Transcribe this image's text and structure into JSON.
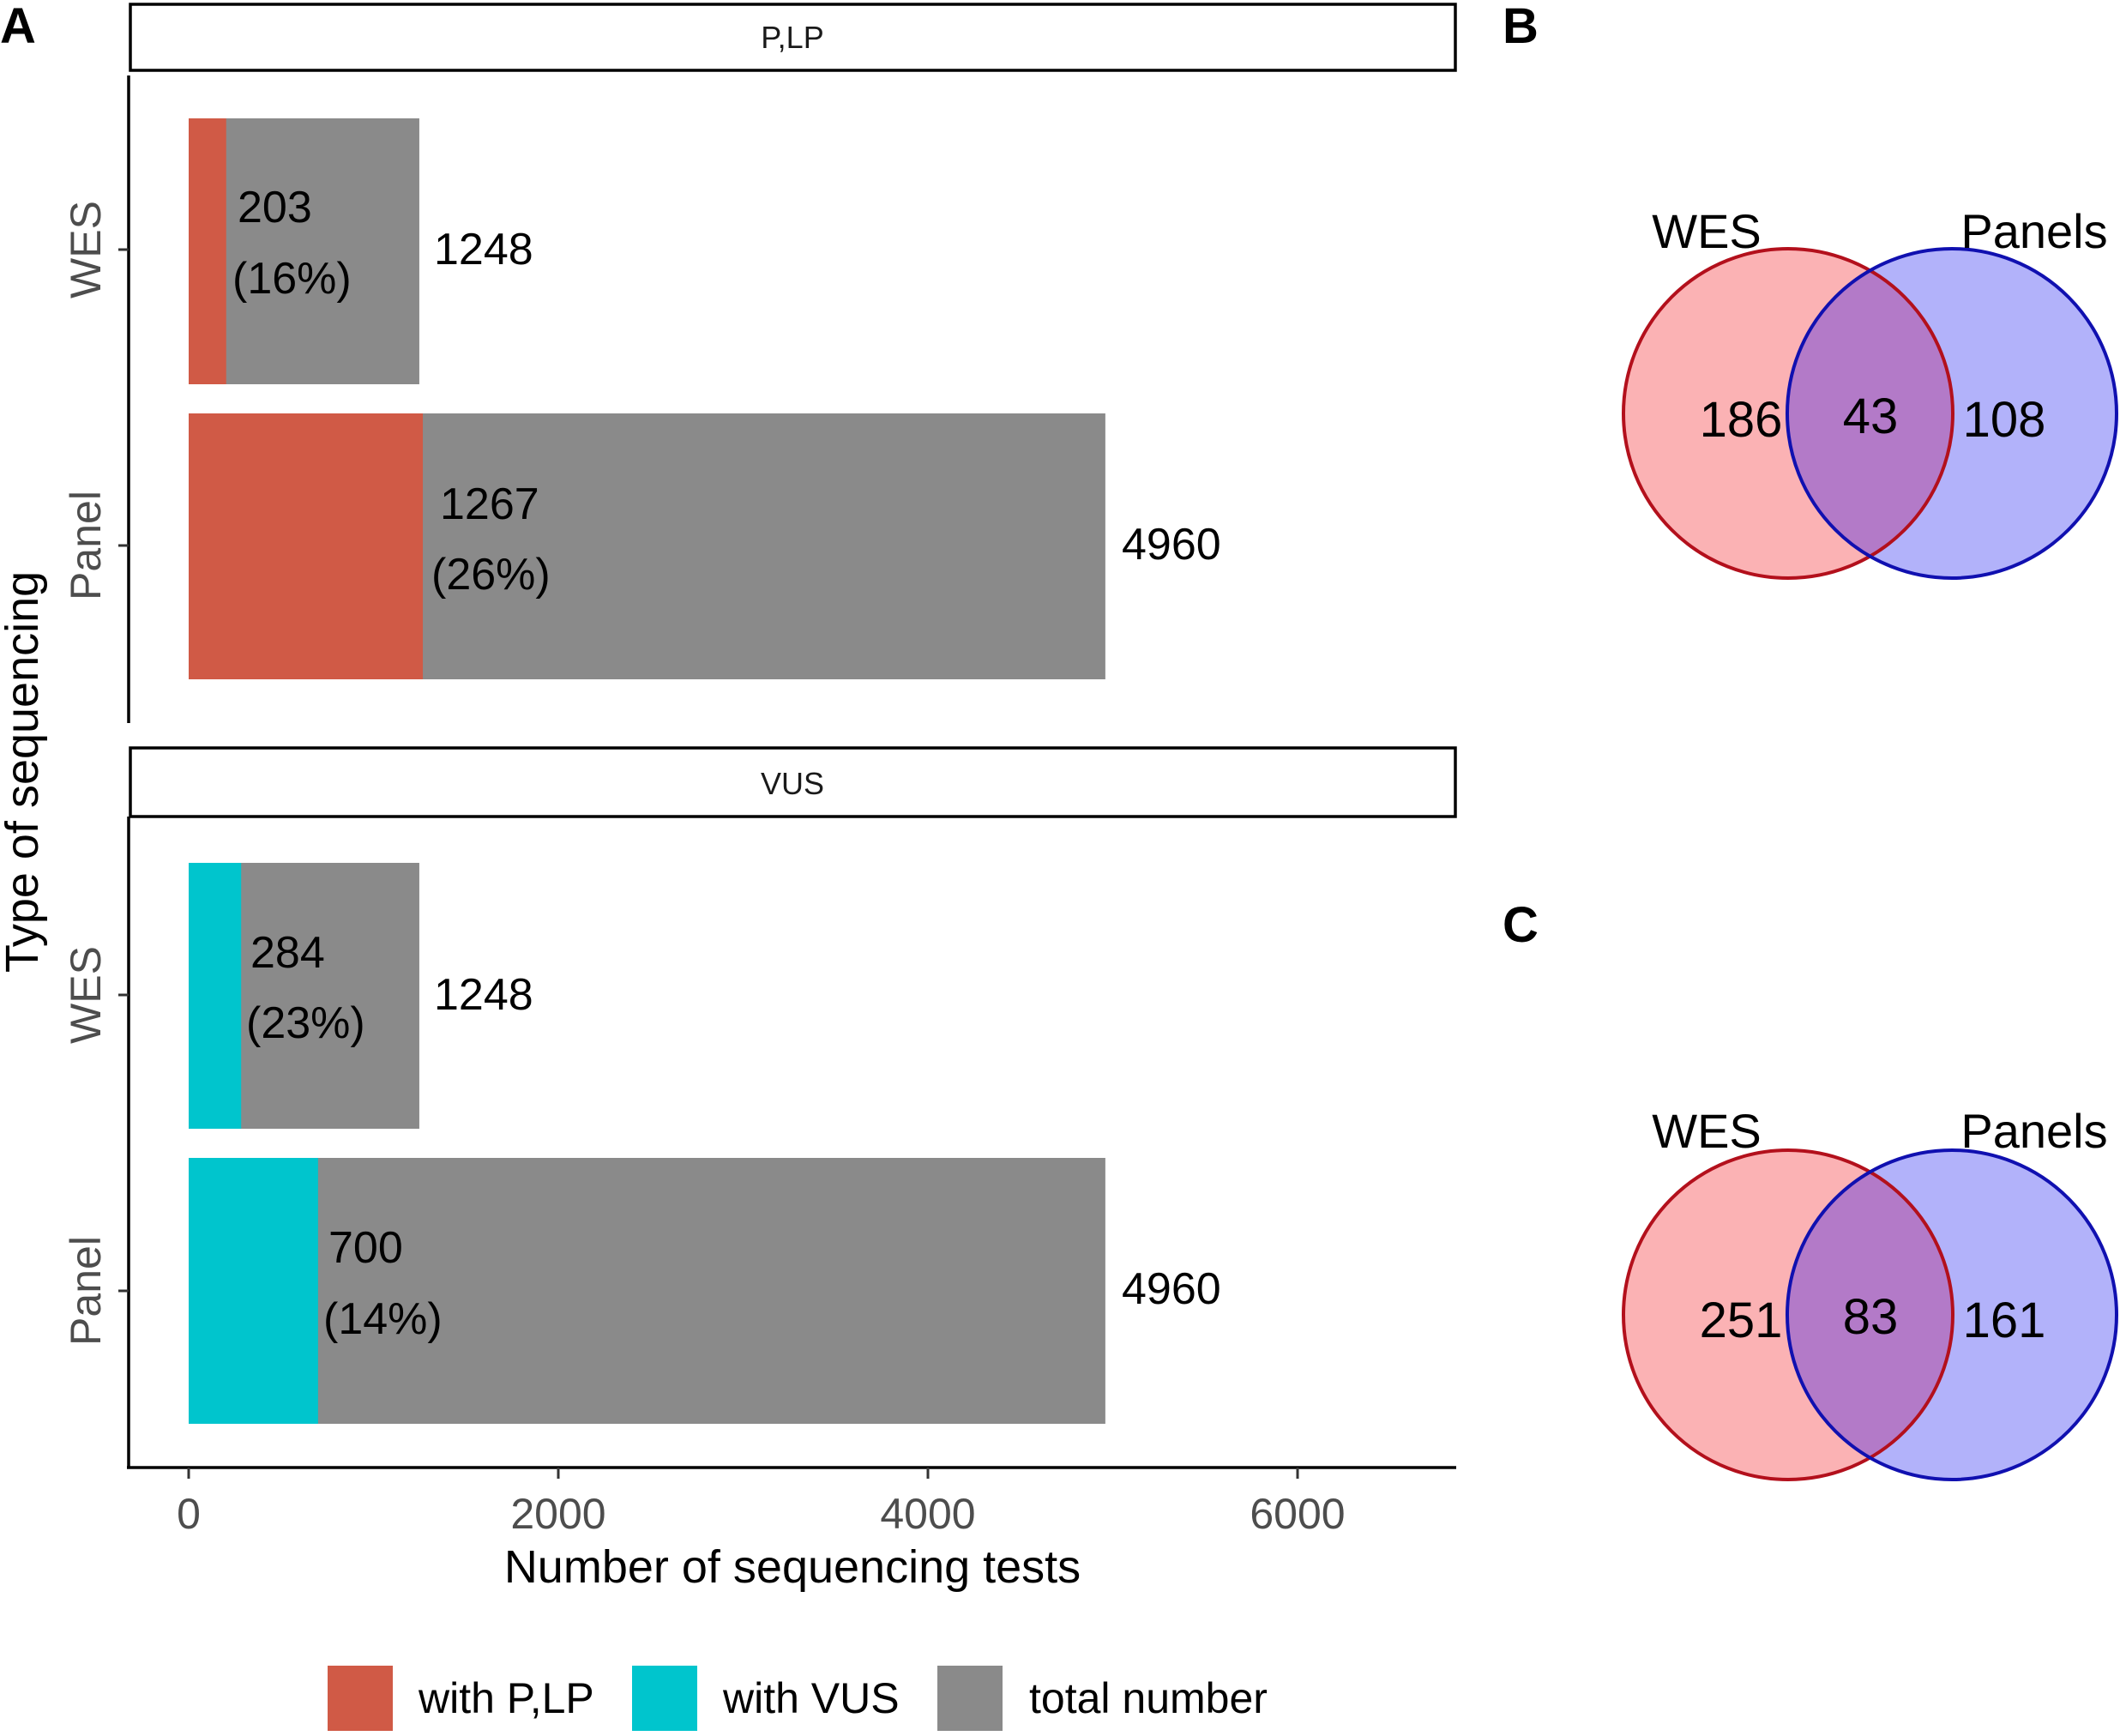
{
  "panels": {
    "a": "A",
    "b": "B",
    "c": "C"
  },
  "colors": {
    "plp": "#d05a46",
    "vus": "#00c5cd",
    "total": "#8a8a8a",
    "wes_fill": "#fbb2b4",
    "wes_stroke": "#b3101c",
    "panels_fill": "#b2b2fa",
    "panels_stroke": "#1010b0",
    "overlap_fill": "#b37ac8"
  },
  "chart_data": [
    {
      "type": "bar",
      "orientation": "horizontal",
      "xlabel": "Number of sequencing tests",
      "ylabel": "Type of sequencing",
      "xlim": [
        -300,
        6800
      ],
      "xticks": [
        "0",
        "2000",
        "4000",
        "6000"
      ],
      "xtick_values": [
        0,
        2000,
        4000,
        6000
      ],
      "facets": [
        {
          "strip": "P,LP",
          "fill_key": "plp",
          "categories": [
            "WES",
            "Panel"
          ],
          "rows": [
            {
              "category": "WES",
              "subset": 203,
              "total": 1248,
              "subset_label": "203",
              "pct_label": "(16%)",
              "total_label": "1248"
            },
            {
              "category": "Panel",
              "subset": 1267,
              "total": 4960,
              "subset_label": "1267",
              "pct_label": "(26%)",
              "total_label": "4960"
            }
          ]
        },
        {
          "strip": "VUS",
          "fill_key": "vus",
          "categories": [
            "WES",
            "Panel"
          ],
          "rows": [
            {
              "category": "WES",
              "subset": 284,
              "total": 1248,
              "subset_label": "284",
              "pct_label": "(23%)",
              "total_label": "1248"
            },
            {
              "category": "Panel",
              "subset": 700,
              "total": 4960,
              "subset_label": "700",
              "pct_label": "(14%)",
              "total_label": "4960"
            }
          ]
        }
      ],
      "legend": [
        {
          "label": "with P,LP",
          "fill_key": "plp"
        },
        {
          "label": "with VUS",
          "fill_key": "vus"
        },
        {
          "label": "total number",
          "fill_key": "total"
        }
      ]
    },
    {
      "type": "venn",
      "panel": "B",
      "sets": [
        "WES",
        "Panels"
      ],
      "only_left": "186",
      "overlap": "43",
      "only_right": "108"
    },
    {
      "type": "venn",
      "panel": "C",
      "sets": [
        "WES",
        "Panels"
      ],
      "only_left": "251",
      "overlap": "83",
      "only_right": "161"
    }
  ]
}
